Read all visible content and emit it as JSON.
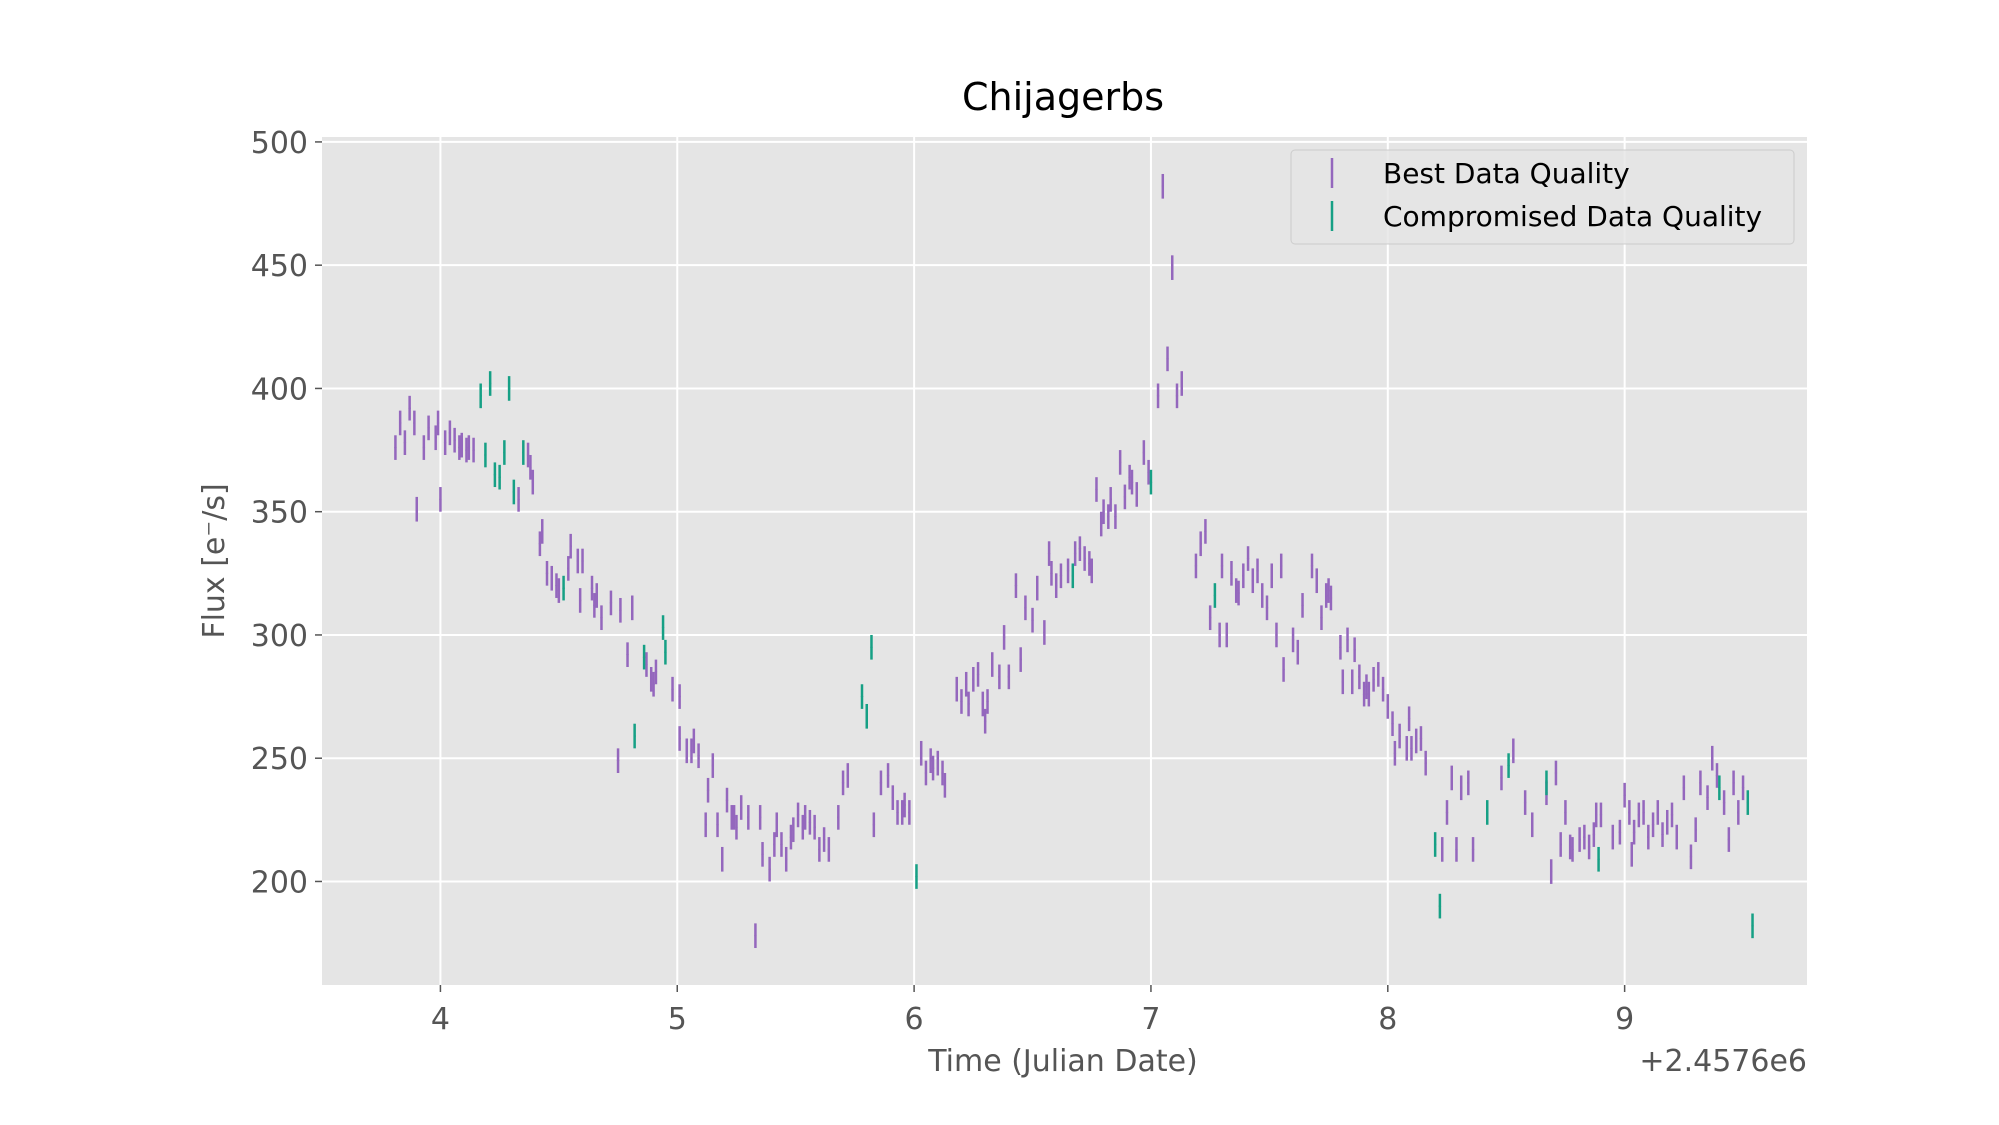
{
  "chart_data": {
    "type": "scatter",
    "title": "Chijagerbs",
    "xlabel": "Time (Julian Date)",
    "ylabel": "Flux [e⁻/s]",
    "x_offset_label": "+2.4576e6",
    "xlim": [
      3.5,
      9.77
    ],
    "ylim": [
      158,
      502
    ],
    "xticks": [
      4,
      5,
      6,
      7,
      8,
      9
    ],
    "yticks": [
      200,
      250,
      300,
      350,
      400,
      450,
      500
    ],
    "grid": true,
    "legend_position": "top-right",
    "error_bar_half_width": 5,
    "series": [
      {
        "name": "Best Data Quality",
        "color": "#9467bd",
        "points": [
          [
            3.81,
            376
          ],
          [
            3.83,
            386
          ],
          [
            3.85,
            378
          ],
          [
            3.87,
            392
          ],
          [
            3.89,
            386
          ],
          [
            3.9,
            351
          ],
          [
            3.93,
            376
          ],
          [
            3.95,
            384
          ],
          [
            3.98,
            380
          ],
          [
            3.99,
            386
          ],
          [
            4.0,
            355
          ],
          [
            4.02,
            378
          ],
          [
            4.04,
            382
          ],
          [
            4.06,
            379
          ],
          [
            4.08,
            376
          ],
          [
            4.09,
            377
          ],
          [
            4.11,
            375
          ],
          [
            4.12,
            376
          ],
          [
            4.14,
            375
          ],
          [
            4.33,
            355
          ],
          [
            4.37,
            373
          ],
          [
            4.38,
            368
          ],
          [
            4.39,
            362
          ],
          [
            4.42,
            337
          ],
          [
            4.43,
            342
          ],
          [
            4.45,
            325
          ],
          [
            4.47,
            323
          ],
          [
            4.49,
            320
          ],
          [
            4.5,
            318
          ],
          [
            4.54,
            327
          ],
          [
            4.55,
            336
          ],
          [
            4.58,
            330
          ],
          [
            4.59,
            314
          ],
          [
            4.6,
            330
          ],
          [
            4.64,
            319
          ],
          [
            4.65,
            312
          ],
          [
            4.66,
            316
          ],
          [
            4.68,
            307
          ],
          [
            4.72,
            313
          ],
          [
            4.75,
            249
          ],
          [
            4.76,
            310
          ],
          [
            4.79,
            292
          ],
          [
            4.81,
            311
          ],
          [
            4.87,
            288
          ],
          [
            4.89,
            282
          ],
          [
            4.9,
            280
          ],
          [
            4.91,
            285
          ],
          [
            4.98,
            278
          ],
          [
            5.01,
            275
          ],
          [
            5.01,
            258
          ],
          [
            5.04,
            253
          ],
          [
            5.06,
            253
          ],
          [
            5.07,
            257
          ],
          [
            5.09,
            251
          ],
          [
            5.12,
            223
          ],
          [
            5.13,
            237
          ],
          [
            5.15,
            247
          ],
          [
            5.17,
            223
          ],
          [
            5.19,
            209
          ],
          [
            5.21,
            233
          ],
          [
            5.23,
            226
          ],
          [
            5.24,
            226
          ],
          [
            5.25,
            222
          ],
          [
            5.27,
            230
          ],
          [
            5.3,
            226
          ],
          [
            5.33,
            178
          ],
          [
            5.35,
            226
          ],
          [
            5.36,
            211
          ],
          [
            5.39,
            205
          ],
          [
            5.41,
            215
          ],
          [
            5.42,
            223
          ],
          [
            5.44,
            215
          ],
          [
            5.46,
            209
          ],
          [
            5.48,
            218
          ],
          [
            5.49,
            221
          ],
          [
            5.51,
            227
          ],
          [
            5.53,
            222
          ],
          [
            5.54,
            226
          ],
          [
            5.56,
            224
          ],
          [
            5.58,
            222
          ],
          [
            5.6,
            213
          ],
          [
            5.62,
            217
          ],
          [
            5.64,
            213
          ],
          [
            5.68,
            226
          ],
          [
            5.7,
            240
          ],
          [
            5.72,
            243
          ],
          [
            5.83,
            223
          ],
          [
            5.86,
            240
          ],
          [
            5.89,
            243
          ],
          [
            5.91,
            234
          ],
          [
            5.93,
            228
          ],
          [
            5.95,
            228
          ],
          [
            5.96,
            231
          ],
          [
            5.98,
            228
          ],
          [
            6.03,
            252
          ],
          [
            6.05,
            244
          ],
          [
            6.07,
            249
          ],
          [
            6.08,
            246
          ],
          [
            6.1,
            248
          ],
          [
            6.12,
            244
          ],
          [
            6.13,
            239
          ],
          [
            6.18,
            278
          ],
          [
            6.2,
            273
          ],
          [
            6.22,
            280
          ],
          [
            6.23,
            272
          ],
          [
            6.25,
            282
          ],
          [
            6.27,
            284
          ],
          [
            6.29,
            272
          ],
          [
            6.3,
            265
          ],
          [
            6.31,
            273
          ],
          [
            6.33,
            288
          ],
          [
            6.36,
            283
          ],
          [
            6.38,
            299
          ],
          [
            6.4,
            283
          ],
          [
            6.43,
            320
          ],
          [
            6.45,
            290
          ],
          [
            6.47,
            311
          ],
          [
            6.5,
            306
          ],
          [
            6.52,
            319
          ],
          [
            6.55,
            301
          ],
          [
            6.57,
            333
          ],
          [
            6.58,
            325
          ],
          [
            6.6,
            320
          ],
          [
            6.62,
            324
          ],
          [
            6.65,
            326
          ],
          [
            6.68,
            333
          ],
          [
            6.7,
            335
          ],
          [
            6.72,
            331
          ],
          [
            6.74,
            329
          ],
          [
            6.75,
            326
          ],
          [
            6.77,
            359
          ],
          [
            6.79,
            345
          ],
          [
            6.8,
            350
          ],
          [
            6.82,
            348
          ],
          [
            6.83,
            355
          ],
          [
            6.85,
            348
          ],
          [
            6.87,
            370
          ],
          [
            6.89,
            356
          ],
          [
            6.91,
            364
          ],
          [
            6.92,
            362
          ],
          [
            6.94,
            357
          ],
          [
            6.97,
            374
          ],
          [
            6.99,
            366
          ],
          [
            7.03,
            397
          ],
          [
            7.05,
            482
          ],
          [
            7.07,
            412
          ],
          [
            7.09,
            449
          ],
          [
            7.11,
            397
          ],
          [
            7.13,
            402
          ],
          [
            7.19,
            328
          ],
          [
            7.21,
            337
          ],
          [
            7.23,
            342
          ],
          [
            7.25,
            307
          ],
          [
            7.29,
            300
          ],
          [
            7.3,
            328
          ],
          [
            7.32,
            300
          ],
          [
            7.34,
            325
          ],
          [
            7.36,
            318
          ],
          [
            7.37,
            317
          ],
          [
            7.39,
            324
          ],
          [
            7.41,
            331
          ],
          [
            7.43,
            322
          ],
          [
            7.45,
            326
          ],
          [
            7.47,
            316
          ],
          [
            7.49,
            311
          ],
          [
            7.51,
            324
          ],
          [
            7.53,
            300
          ],
          [
            7.55,
            328
          ],
          [
            7.56,
            286
          ],
          [
            7.6,
            298
          ],
          [
            7.62,
            293
          ],
          [
            7.64,
            312
          ],
          [
            7.68,
            328
          ],
          [
            7.7,
            322
          ],
          [
            7.72,
            307
          ],
          [
            7.74,
            316
          ],
          [
            7.75,
            318
          ],
          [
            7.76,
            315
          ],
          [
            7.8,
            295
          ],
          [
            7.81,
            281
          ],
          [
            7.83,
            298
          ],
          [
            7.85,
            281
          ],
          [
            7.86,
            294
          ],
          [
            7.88,
            283
          ],
          [
            7.9,
            276
          ],
          [
            7.91,
            279
          ],
          [
            7.92,
            276
          ],
          [
            7.94,
            282
          ],
          [
            7.96,
            284
          ],
          [
            7.98,
            278
          ],
          [
            8.0,
            271
          ],
          [
            8.02,
            264
          ],
          [
            8.03,
            252
          ],
          [
            8.05,
            259
          ],
          [
            8.08,
            254
          ],
          [
            8.09,
            266
          ],
          [
            8.1,
            254
          ],
          [
            8.12,
            257
          ],
          [
            8.14,
            258
          ],
          [
            8.16,
            248
          ],
          [
            8.23,
            213
          ],
          [
            8.25,
            228
          ],
          [
            8.27,
            242
          ],
          [
            8.29,
            213
          ],
          [
            8.31,
            238
          ],
          [
            8.34,
            240
          ],
          [
            8.36,
            213
          ],
          [
            8.48,
            242
          ],
          [
            8.53,
            253
          ],
          [
            8.58,
            232
          ],
          [
            8.61,
            223
          ],
          [
            8.67,
            236
          ],
          [
            8.69,
            204
          ],
          [
            8.71,
            244
          ],
          [
            8.73,
            215
          ],
          [
            8.75,
            228
          ],
          [
            8.77,
            214
          ],
          [
            8.78,
            213
          ],
          [
            8.81,
            217
          ],
          [
            8.83,
            218
          ],
          [
            8.85,
            214
          ],
          [
            8.87,
            219
          ],
          [
            8.88,
            227
          ],
          [
            8.9,
            227
          ],
          [
            8.95,
            218
          ],
          [
            8.98,
            220
          ],
          [
            9.0,
            235
          ],
          [
            9.02,
            228
          ],
          [
            9.03,
            211
          ],
          [
            9.04,
            220
          ],
          [
            9.06,
            227
          ],
          [
            9.08,
            228
          ],
          [
            9.1,
            218
          ],
          [
            9.12,
            223
          ],
          [
            9.14,
            228
          ],
          [
            9.16,
            219
          ],
          [
            9.18,
            224
          ],
          [
            9.2,
            227
          ],
          [
            9.22,
            218
          ],
          [
            9.25,
            238
          ],
          [
            9.28,
            210
          ],
          [
            9.3,
            221
          ],
          [
            9.32,
            240
          ],
          [
            9.35,
            234
          ],
          [
            9.37,
            250
          ],
          [
            9.39,
            243
          ],
          [
            9.42,
            232
          ],
          [
            9.44,
            217
          ],
          [
            9.46,
            240
          ],
          [
            9.48,
            228
          ],
          [
            9.5,
            238
          ]
        ]
      },
      {
        "name": "Compromised Data Quality",
        "color": "#16a085",
        "points": [
          [
            4.17,
            397
          ],
          [
            4.19,
            373
          ],
          [
            4.21,
            402
          ],
          [
            4.23,
            365
          ],
          [
            4.25,
            364
          ],
          [
            4.27,
            374
          ],
          [
            4.29,
            400
          ],
          [
            4.31,
            358
          ],
          [
            4.35,
            374
          ],
          [
            4.52,
            319
          ],
          [
            4.82,
            259
          ],
          [
            4.86,
            291
          ],
          [
            4.94,
            303
          ],
          [
            4.95,
            293
          ],
          [
            5.78,
            275
          ],
          [
            5.8,
            267
          ],
          [
            5.82,
            295
          ],
          [
            6.01,
            202
          ],
          [
            6.67,
            324
          ],
          [
            7.0,
            362
          ],
          [
            7.27,
            316
          ],
          [
            8.2,
            215
          ],
          [
            8.22,
            190
          ],
          [
            8.42,
            228
          ],
          [
            8.51,
            247
          ],
          [
            8.67,
            240
          ],
          [
            8.89,
            209
          ],
          [
            9.4,
            238
          ],
          [
            9.52,
            232
          ],
          [
            9.54,
            182
          ]
        ]
      }
    ]
  }
}
